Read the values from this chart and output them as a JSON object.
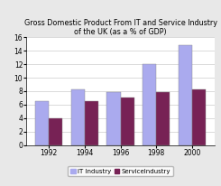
{
  "title": "Gross Domestic Product From IT and Service Industry of the UK (as a % of GDP)",
  "categories": [
    "1992",
    "1994",
    "1996",
    "1998",
    "2000"
  ],
  "it_industry": [
    6.5,
    8.2,
    7.9,
    12.0,
    14.8
  ],
  "service_industry": [
    4.0,
    6.5,
    7.0,
    7.8,
    8.2
  ],
  "it_color": "#aaaaee",
  "service_color": "#772255",
  "ylim": [
    0,
    16
  ],
  "yticks": [
    0,
    2,
    4,
    6,
    8,
    10,
    12,
    14,
    16
  ],
  "legend_labels": [
    "IT Industry",
    "ServiceIndustry"
  ],
  "bar_width": 0.38,
  "bg_color": "#e8e8e8",
  "title_fontsize": 5.8,
  "tick_fontsize": 5.5,
  "legend_fontsize": 5.0
}
